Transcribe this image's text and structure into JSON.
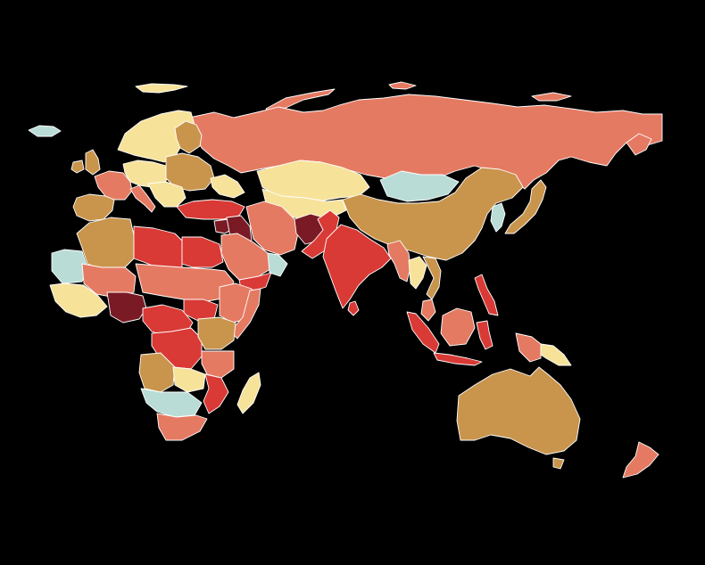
{
  "map": {
    "background": "#000000",
    "border_color": "#ffffff",
    "palette": {
      "very_high": "#7a1a25",
      "high": "#d93a35",
      "elevated": "#e57a62",
      "moderate": "#c9954c",
      "low": "#f7e29a",
      "minimal": "#b9ddd6"
    },
    "regions": [
      {
        "id": "russia",
        "level": "elevated"
      },
      {
        "id": "kazakhstan",
        "level": "low"
      },
      {
        "id": "mongolia",
        "level": "minimal"
      },
      {
        "id": "china",
        "level": "moderate"
      },
      {
        "id": "india",
        "level": "high"
      },
      {
        "id": "afghanistan",
        "level": "very_high"
      },
      {
        "id": "pakistan",
        "level": "high"
      },
      {
        "id": "iran",
        "level": "elevated"
      },
      {
        "id": "iraq",
        "level": "very_high"
      },
      {
        "id": "syria",
        "level": "very_high"
      },
      {
        "id": "saudi_arabia",
        "level": "elevated"
      },
      {
        "id": "yemen",
        "level": "high"
      },
      {
        "id": "oman",
        "level": "minimal"
      },
      {
        "id": "turkey",
        "level": "high"
      },
      {
        "id": "scandinavia",
        "level": "low"
      },
      {
        "id": "finland",
        "level": "moderate"
      },
      {
        "id": "western_europe",
        "level": "elevated"
      },
      {
        "id": "central_europe",
        "level": "low"
      },
      {
        "id": "eastern_europe",
        "level": "moderate"
      },
      {
        "id": "iberia",
        "level": "moderate"
      },
      {
        "id": "uk_ireland",
        "level": "moderate"
      },
      {
        "id": "iceland",
        "level": "minimal"
      },
      {
        "id": "svalbard",
        "level": "low"
      },
      {
        "id": "caucasus_central_asia",
        "level": "low"
      },
      {
        "id": "north_africa_west",
        "level": "moderate"
      },
      {
        "id": "libya",
        "level": "high"
      },
      {
        "id": "egypt",
        "level": "high"
      },
      {
        "id": "sahel_west",
        "level": "minimal"
      },
      {
        "id": "sahel_central",
        "level": "elevated"
      },
      {
        "id": "west_coast",
        "level": "low"
      },
      {
        "id": "nigeria",
        "level": "very_high"
      },
      {
        "id": "chad_sudan",
        "level": "elevated"
      },
      {
        "id": "south_sudan",
        "level": "high"
      },
      {
        "id": "ethiopia",
        "level": "elevated"
      },
      {
        "id": "horn",
        "level": "elevated"
      },
      {
        "id": "central_africa",
        "level": "high"
      },
      {
        "id": "drc",
        "level": "high"
      },
      {
        "id": "east_africa",
        "level": "moderate"
      },
      {
        "id": "tanzania",
        "level": "elevated"
      },
      {
        "id": "angola",
        "level": "moderate"
      },
      {
        "id": "zambia",
        "level": "low"
      },
      {
        "id": "mozambique",
        "level": "high"
      },
      {
        "id": "namibia_botswana",
        "level": "minimal"
      },
      {
        "id": "south_africa",
        "level": "elevated"
      },
      {
        "id": "madagascar",
        "level": "low"
      },
      {
        "id": "myanmar",
        "level": "elevated"
      },
      {
        "id": "thailand",
        "level": "low"
      },
      {
        "id": "vietnam",
        "level": "moderate"
      },
      {
        "id": "korea",
        "level": "minimal"
      },
      {
        "id": "japan",
        "level": "moderate"
      },
      {
        "id": "philippines",
        "level": "high"
      },
      {
        "id": "malaysia",
        "level": "elevated"
      },
      {
        "id": "indonesia",
        "level": "high"
      },
      {
        "id": "png",
        "level": "elevated"
      },
      {
        "id": "png_east",
        "level": "low"
      },
      {
        "id": "australia",
        "level": "moderate"
      },
      {
        "id": "new_zealand",
        "level": "elevated"
      },
      {
        "id": "sri_lanka",
        "level": "high"
      }
    ]
  }
}
